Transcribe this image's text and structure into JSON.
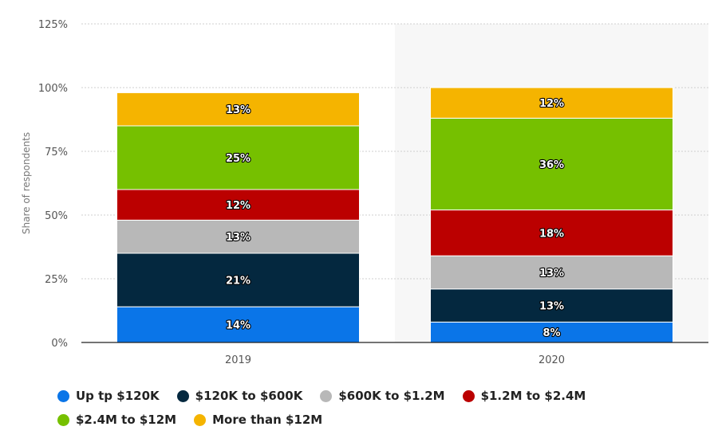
{
  "chart_data": {
    "type": "bar",
    "stacked": true,
    "categories": [
      "2019",
      "2020"
    ],
    "ylabel": "Share of respondents",
    "xlabel": "",
    "ylim": [
      0,
      125
    ],
    "yticks": [
      0,
      25,
      50,
      75,
      100,
      125
    ],
    "ytick_labels": [
      "0%",
      "25%",
      "50%",
      "75%",
      "100%",
      "125%"
    ],
    "grid": true,
    "series": [
      {
        "name": "Up tp $120K",
        "color": "#0a75e8",
        "values": [
          14,
          8
        ],
        "labels": [
          "14%",
          "8%"
        ]
      },
      {
        "name": "$120K to $600K",
        "color": "#04283f",
        "values": [
          21,
          13
        ],
        "labels": [
          "21%",
          "13%"
        ]
      },
      {
        "name": "$600K to $1.2M",
        "color": "#b8b8b8",
        "values": [
          13,
          13
        ],
        "labels": [
          "13%",
          "13%"
        ]
      },
      {
        "name": "$1.2M to $2.4M",
        "color": "#bb0000",
        "values": [
          12,
          18
        ],
        "labels": [
          "12%",
          "18%"
        ]
      },
      {
        "name": "$2.4M to $12M",
        "color": "#76c000",
        "values": [
          25,
          36
        ],
        "labels": [
          "25%",
          "36%"
        ]
      },
      {
        "name": "More than $12M",
        "color": "#f5b400",
        "values": [
          13,
          12
        ],
        "labels": [
          "13%",
          "12%"
        ]
      }
    ],
    "highlight_category": "2020",
    "legend_position": "bottom"
  }
}
